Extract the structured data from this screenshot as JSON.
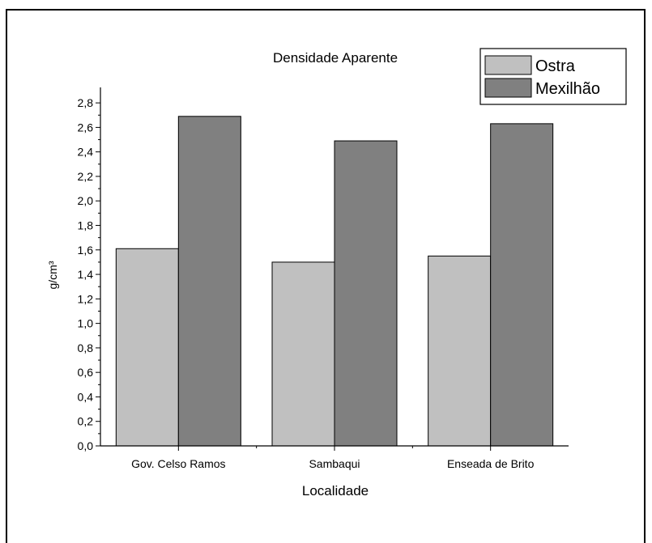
{
  "chart_data": {
    "type": "bar",
    "title": "Densidade Aparente",
    "xlabel": "Localidade",
    "ylabel": "g/cm³",
    "categories": [
      "Gov. Celso Ramos",
      "Sambaqui",
      "Enseada de Brito"
    ],
    "series": [
      {
        "name": "Ostra",
        "values": [
          1.61,
          1.5,
          1.55
        ],
        "color": "#c0c0c0"
      },
      {
        "name": "Mexilhão",
        "values": [
          2.69,
          2.49,
          2.63
        ],
        "color": "#808080"
      }
    ],
    "ylim": [
      0,
      2.9
    ],
    "yticks": [
      "0,0",
      "0,2",
      "0,4",
      "0,6",
      "0,8",
      "1,0",
      "1,2",
      "1,4",
      "1,6",
      "1,8",
      "2,0",
      "2,2",
      "2,4",
      "2,6",
      "2,8"
    ],
    "ytick_values": [
      0,
      0.2,
      0.4,
      0.6,
      0.8,
      1.0,
      1.2,
      1.4,
      1.6,
      1.8,
      2.0,
      2.2,
      2.4,
      2.6,
      2.8
    ],
    "grid": false,
    "legend_position": "top-right"
  }
}
